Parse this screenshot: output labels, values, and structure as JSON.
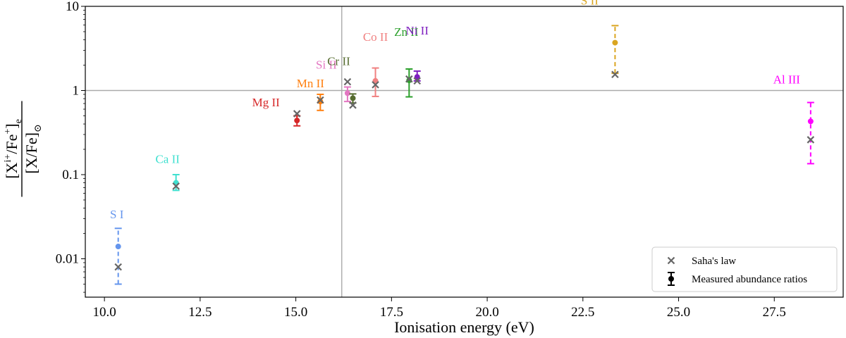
{
  "chart_data": {
    "type": "scatter",
    "title": "",
    "xlabel": "Ionisation energy (eV)",
    "ylabel": {
      "numerator": "[X",
      "numerator_sup": "i+",
      "numerator_mid": "/Fe",
      "numerator_sup2": "+",
      "numerator_end": "]",
      "numerator_sub": "e",
      "denominator": "[X/Fe]",
      "denominator_sub": "⊙"
    },
    "xlim": [
      9.5,
      29.3
    ],
    "ylim": [
      0.0035,
      10
    ],
    "yscale": "log",
    "xticks": [
      10.0,
      12.5,
      15.0,
      17.5,
      20.0,
      22.5,
      25.0,
      27.5
    ],
    "xtick_labels": [
      "10.0",
      "12.5",
      "15.0",
      "17.5",
      "20.0",
      "22.5",
      "25.0",
      "27.5"
    ],
    "yticks": [
      0.01,
      0.1,
      1,
      10
    ],
    "ytick_labels": [
      "0.01",
      "0.1",
      "1",
      "10"
    ],
    "reference_lines": {
      "vertical_x": 16.2,
      "horizontal_y": 1
    },
    "legend": {
      "placement": "lower-right",
      "entries": [
        {
          "marker": "x",
          "label": "Saha's law"
        },
        {
          "marker": "errorbar",
          "label": "Measured abundance ratios"
        }
      ]
    },
    "points": [
      {
        "label": "S I",
        "color": "#6495ED",
        "x": 10.36,
        "measured": 0.014,
        "err_low": 0.005,
        "err_high": 0.023,
        "saha": 0.008,
        "dashed": true
      },
      {
        "label": "Ca II",
        "color": "#40E0D0",
        "x": 11.87,
        "measured": 0.08,
        "err_low": 0.065,
        "err_high": 0.1,
        "saha": 0.073,
        "dashed": false
      },
      {
        "label": "Mg II",
        "color": "#D62728",
        "x": 15.03,
        "measured": 0.44,
        "err_low": 0.38,
        "err_high": 0.5,
        "saha": 0.53,
        "dashed": false
      },
      {
        "label": "Mn II",
        "color": "#FF7F0E",
        "x": 15.64,
        "measured": 0.74,
        "err_low": 0.58,
        "err_high": 0.9,
        "saha": 0.77,
        "dashed": false
      },
      {
        "label": "Si II",
        "color": "#E377C2",
        "x": 16.35,
        "measured": 0.93,
        "err_low": 0.74,
        "err_high": 1.1,
        "saha": 1.27,
        "dashed": false
      },
      {
        "label": "Cr II",
        "color": "#556B2F",
        "x": 16.49,
        "measured": 0.81,
        "err_low": 0.71,
        "err_high": 0.91,
        "saha": 0.67,
        "dashed": false
      },
      {
        "label": "Co II",
        "color": "#F08080",
        "x": 17.08,
        "measured": 1.3,
        "err_low": 0.85,
        "err_high": 1.85,
        "saha": 1.17,
        "dashed": false
      },
      {
        "label": "Zn II",
        "color": "#2CA02C",
        "x": 17.96,
        "measured": 1.32,
        "err_low": 0.84,
        "err_high": 1.8,
        "saha": 1.37,
        "dashed": false
      },
      {
        "label": "Ni II",
        "color": "#7E1FBF",
        "x": 18.17,
        "measured": 1.45,
        "err_low": 1.3,
        "err_high": 1.7,
        "saha": 1.3,
        "dashed": false
      },
      {
        "label": "S II",
        "color": "#DAA520",
        "x": 23.34,
        "measured": 3.7,
        "err_low": 1.6,
        "err_high": 5.9,
        "saha": 1.55,
        "dashed": true
      },
      {
        "label": "Al III",
        "color": "#FF00FF",
        "x": 28.45,
        "measured": 0.43,
        "err_low": 0.135,
        "err_high": 0.72,
        "saha": 0.26,
        "dashed": true
      }
    ]
  }
}
